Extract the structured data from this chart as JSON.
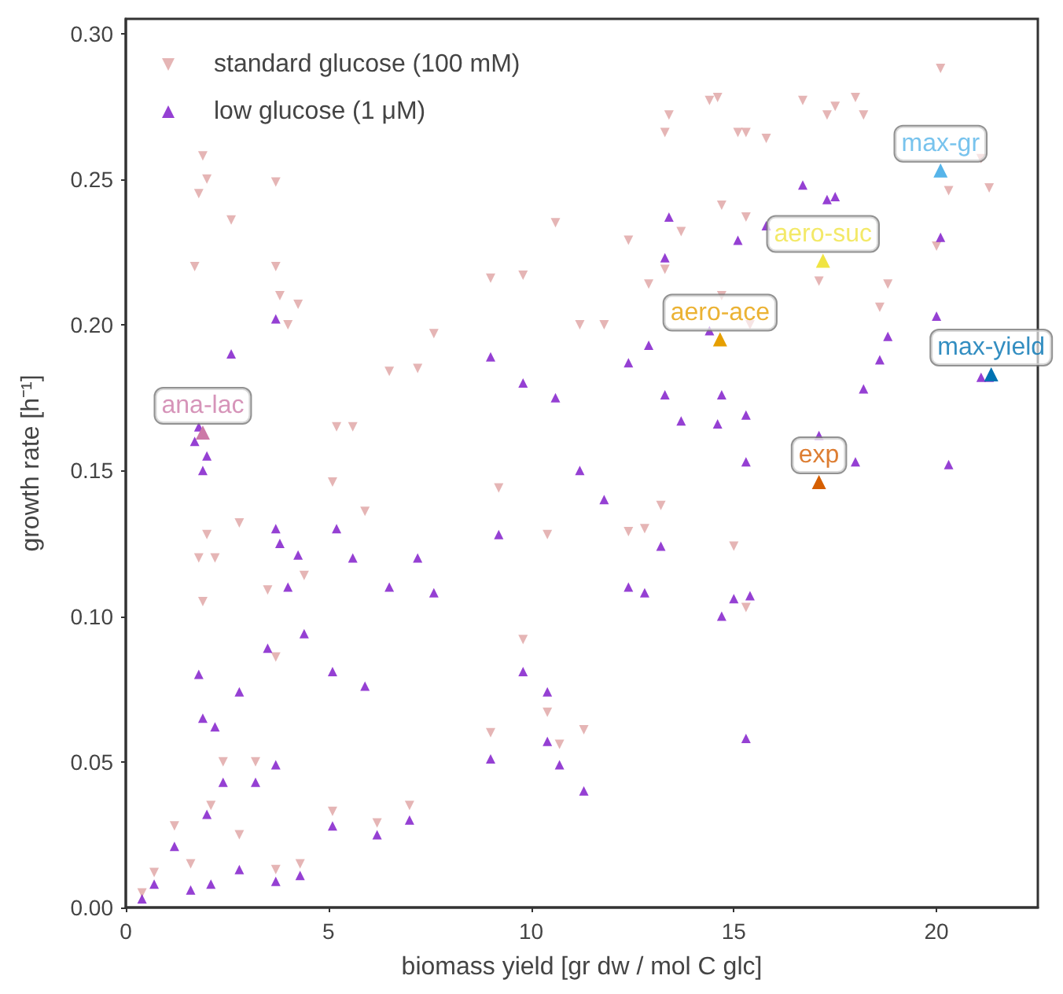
{
  "chart_data": {
    "type": "scatter",
    "xlabel": "biomass yield [gr dw / mol C glc]",
    "ylabel": "growth rate [h⁻¹]",
    "xlim": [
      0,
      22.5
    ],
    "ylim": [
      0,
      0.305
    ],
    "xticks": [
      0,
      5,
      10,
      15,
      20
    ],
    "yticks": [
      {
        "value": 0,
        "label": "0.00"
      },
      {
        "value": 0.05,
        "label": "0.05"
      },
      {
        "value": 0.1,
        "label": "0.10"
      },
      {
        "value": 0.15,
        "label": "0.15"
      },
      {
        "value": 0.2,
        "label": "0.20"
      },
      {
        "value": 0.25,
        "label": "0.25"
      },
      {
        "value": 0.3,
        "label": "0.30"
      }
    ],
    "grid": false,
    "legend": "top left",
    "marker": "triangle",
    "x": [
      0.4,
      0.7,
      1.2,
      1.6,
      1.7,
      1.8,
      1.9,
      2.0,
      1.8,
      1.9,
      2.0,
      2.1,
      2.2,
      2.4,
      2.6,
      2.8,
      2.8,
      3.2,
      3.5,
      3.7,
      3.7,
      3.8,
      3.7,
      3.7,
      4.0,
      4.25,
      4.3,
      4.4,
      5.1,
      5.2,
      5.1,
      5.6,
      5.9,
      6.2,
      6.5,
      7.0,
      7.2,
      7.6,
      9.0,
      9.0,
      9.2,
      9.8,
      10.6,
      10.4,
      9.8,
      10.4,
      10.7,
      11.3,
      11.2,
      11.8,
      12.4,
      12.9,
      13.3,
      13.4,
      13.3,
      13.7,
      14.4,
      14.6,
      14.7,
      15.1,
      15.3,
      15.3,
      15.8,
      16.7,
      17.3,
      17.5,
      18.0,
      18.2,
      17.1,
      18.8,
      18.6,
      20.1,
      20.0,
      20.3,
      21.1,
      21.3,
      12.4,
      12.8,
      13.2,
      14.7,
      15.0,
      15.3,
      15.4
    ],
    "series": [
      {
        "name": "standard glucose (100 mM)",
        "color": "#dfa3a3",
        "values": [
          0.005,
          0.012,
          0.028,
          0.015,
          0.22,
          0.245,
          0.258,
          0.25,
          0.12,
          0.105,
          0.128,
          0.035,
          0.12,
          0.05,
          0.236,
          0.025,
          0.132,
          0.05,
          0.109,
          0.249,
          0.22,
          0.21,
          0.086,
          0.013,
          0.2,
          0.207,
          0.015,
          0.114,
          0.146,
          0.165,
          0.033,
          0.165,
          0.136,
          0.029,
          0.184,
          0.035,
          0.185,
          0.197,
          0.216,
          0.06,
          0.144,
          0.217,
          0.235,
          0.128,
          0.092,
          0.067,
          0.056,
          0.061,
          0.2,
          0.2,
          0.229,
          0.214,
          0.266,
          0.272,
          0.219,
          0.232,
          0.277,
          0.278,
          0.241,
          0.266,
          0.266,
          0.237,
          0.264,
          0.277,
          0.272,
          0.275,
          0.278,
          0.272,
          0.215,
          0.214,
          0.206,
          0.288,
          0.227,
          0.246,
          0.257,
          0.247,
          0.129,
          0.13,
          0.138,
          0.21,
          0.124,
          0.103,
          0.2
        ]
      },
      {
        "name": "low glucose (1 μM)",
        "color": "#7a10c8",
        "values": [
          0.003,
          0.008,
          0.021,
          0.006,
          0.16,
          0.165,
          0.15,
          0.155,
          0.08,
          0.065,
          0.032,
          0.008,
          0.062,
          0.043,
          0.19,
          0.013,
          0.074,
          0.043,
          0.089,
          0.202,
          0.13,
          0.125,
          0.049,
          0.009,
          0.11,
          0.121,
          0.011,
          0.094,
          0.081,
          0.13,
          0.028,
          0.12,
          0.076,
          0.025,
          0.11,
          0.03,
          0.12,
          0.108,
          0.189,
          0.051,
          0.128,
          0.18,
          0.175,
          0.074,
          0.081,
          0.057,
          0.049,
          0.04,
          0.15,
          0.14,
          0.187,
          0.193,
          0.223,
          0.237,
          0.176,
          0.167,
          0.198,
          0.166,
          0.176,
          0.229,
          0.169,
          0.153,
          0.234,
          0.248,
          0.243,
          0.244,
          0.153,
          0.178,
          0.162,
          0.196,
          0.188,
          0.23,
          0.203,
          0.152,
          0.182,
          0.182,
          0.11,
          0.108,
          0.124,
          0.1,
          0.106,
          0.058,
          0.107
        ]
      },
      {
        "type": "scatter",
        "x": [
          1.9,
          20.1,
          17.2,
          14.66,
          21.35,
          17.1
        ],
        "values": [
          0.163,
          0.253,
          0.222,
          0.195,
          0.183,
          0.146
        ],
        "colors": [
          "#cc79a7",
          "#56b4e9",
          "#f0e442",
          "#e69f00",
          "#0072b2",
          "#d55e00"
        ]
      }
    ],
    "annotations": [
      {
        "text": "ana-lac",
        "x": 1.9,
        "y": 0.163
      },
      {
        "text": "max-gr",
        "x": 20.1,
        "y": 0.253
      },
      {
        "text": "aero-suc",
        "x": 17.2,
        "y": 0.222
      },
      {
        "text": "aero-ace",
        "x": 14.66,
        "y": 0.195
      },
      {
        "text": "max-yield",
        "x": 21.35,
        "y": 0.183
      },
      {
        "text": "exp",
        "x": 17.1,
        "y": 0.146
      }
    ]
  }
}
